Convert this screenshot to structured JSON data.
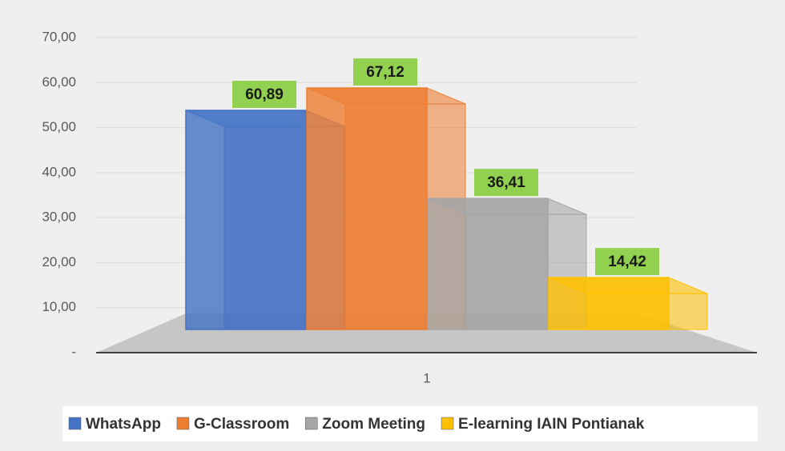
{
  "chart_data": {
    "type": "bar3d",
    "categories": [
      "1"
    ],
    "series": [
      {
        "name": "WhatsApp",
        "color": "#4472c4",
        "values": [
          60.89
        ],
        "value_labels": [
          "60,89"
        ]
      },
      {
        "name": "G-Classroom",
        "color": "#ed7d31",
        "values": [
          67.12
        ],
        "value_labels": [
          "67,12"
        ]
      },
      {
        "name": "Zoom Meeting",
        "color": "#a5a5a5",
        "values": [
          36.41
        ],
        "value_labels": [
          "36,41"
        ]
      },
      {
        "name": "E-learning IAIN Pontianak",
        "color": "#ffc000",
        "values": [
          14.42
        ],
        "value_labels": [
          "14,42"
        ]
      }
    ],
    "ylim": [
      0,
      70
    ],
    "yticks": [
      {
        "value": 0,
        "label": "-"
      },
      {
        "value": 10,
        "label": "10,00"
      },
      {
        "value": 20,
        "label": "20,00"
      },
      {
        "value": 30,
        "label": "30,00"
      },
      {
        "value": 40,
        "label": "40,00"
      },
      {
        "value": 50,
        "label": "50,00"
      },
      {
        "value": 60,
        "label": "60,00"
      },
      {
        "value": 70,
        "label": "70,00"
      }
    ],
    "grid": true,
    "legend": "bottom",
    "value_label_color": "#92d050"
  }
}
